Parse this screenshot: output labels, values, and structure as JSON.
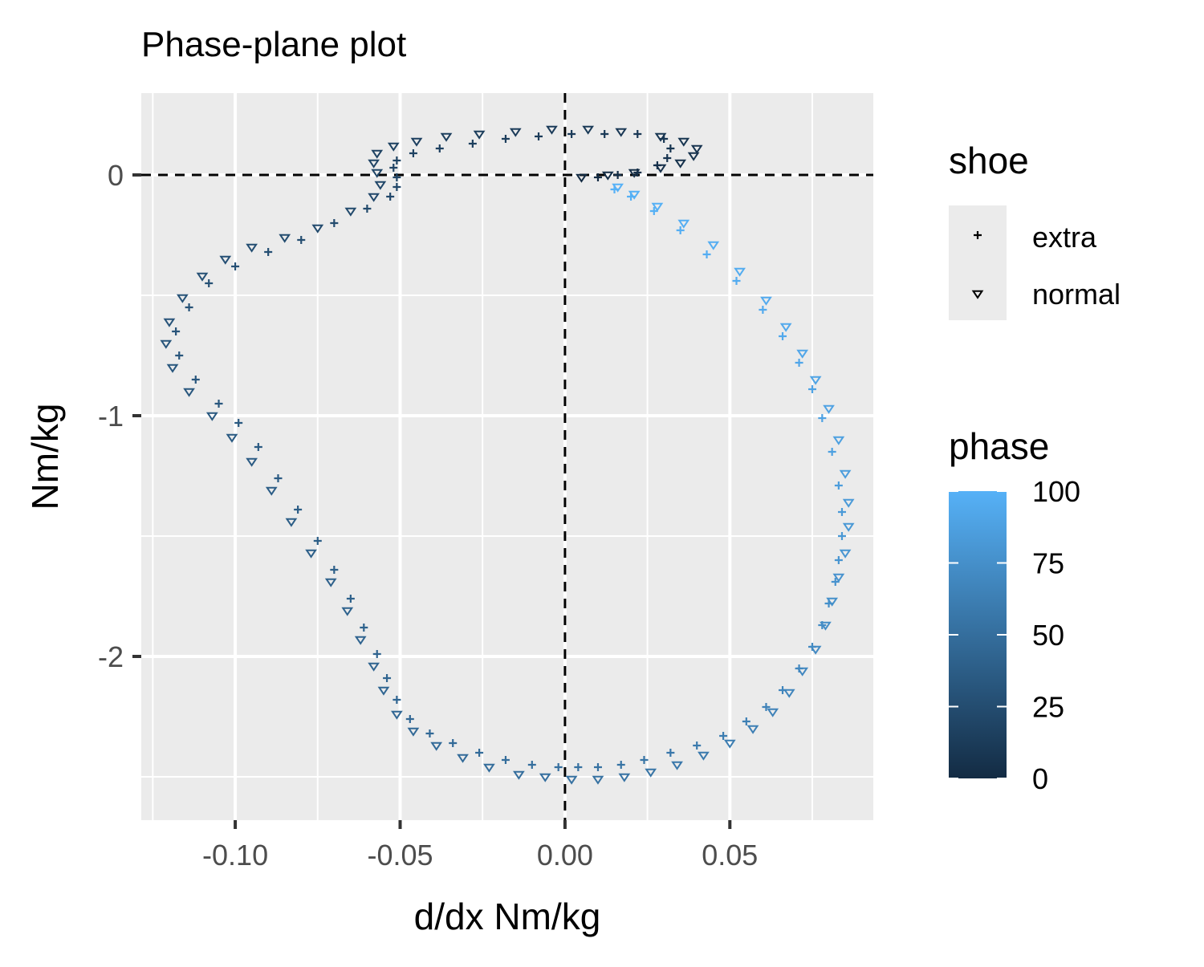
{
  "chart_data": {
    "type": "scatter",
    "title": "Phase-plane plot",
    "xlabel": "d/dx Nm/kg",
    "ylabel": "Nm/kg",
    "xlim": [
      -0.1285,
      0.0935
    ],
    "ylim": [
      -2.68,
      0.34
    ],
    "x_ticks": [
      -0.1,
      -0.05,
      0.0,
      0.05
    ],
    "x_tick_labels": [
      "-0.10",
      "-0.05",
      "0.00",
      "0.05"
    ],
    "y_ticks": [
      0,
      -1,
      -2
    ],
    "y_tick_labels": [
      "0",
      "-1",
      "-2"
    ],
    "grid": true,
    "reference_lines": [
      {
        "orientation": "horizontal",
        "value": 0,
        "style": "dashed"
      },
      {
        "orientation": "vertical",
        "value": 0,
        "style": "dashed"
      }
    ],
    "legend": {
      "placement": "right",
      "shape": {
        "title": "shoe",
        "entries": [
          {
            "label": "extra",
            "shape": "plus"
          },
          {
            "label": "normal",
            "shape": "triangle-down"
          }
        ]
      },
      "color": {
        "title": "phase",
        "ticks": [
          0,
          25,
          50,
          75,
          100
        ],
        "tick_labels": [
          "0",
          "25",
          "50",
          "75",
          "100"
        ],
        "low_color": "#132B43",
        "high_color": "#56B1F7"
      }
    },
    "series": [
      {
        "name": "extra",
        "shape": "plus",
        "points": [
          [
            0.01,
            -0.01,
            0
          ],
          [
            0.016,
            0.0,
            2
          ],
          [
            0.022,
            0.01,
            4
          ],
          [
            0.028,
            0.04,
            6
          ],
          [
            0.031,
            0.07,
            7
          ],
          [
            0.032,
            0.11,
            8
          ],
          [
            0.03,
            0.15,
            9
          ],
          [
            0.022,
            0.17,
            10
          ],
          [
            0.012,
            0.17,
            11
          ],
          [
            0.002,
            0.17,
            12
          ],
          [
            -0.008,
            0.16,
            13
          ],
          [
            -0.018,
            0.15,
            14
          ],
          [
            -0.028,
            0.13,
            15
          ],
          [
            -0.038,
            0.11,
            16
          ],
          [
            -0.046,
            0.09,
            17
          ],
          [
            -0.051,
            0.06,
            18
          ],
          [
            -0.052,
            0.03,
            19
          ],
          [
            -0.051,
            -0.01,
            20
          ],
          [
            -0.051,
            -0.05,
            21
          ],
          [
            -0.053,
            -0.09,
            22
          ],
          [
            -0.06,
            -0.14,
            23
          ],
          [
            -0.07,
            -0.2,
            24
          ],
          [
            -0.08,
            -0.27,
            25
          ],
          [
            -0.09,
            -0.32,
            26
          ],
          [
            -0.1,
            -0.38,
            27
          ],
          [
            -0.108,
            -0.45,
            28
          ],
          [
            -0.114,
            -0.55,
            29
          ],
          [
            -0.118,
            -0.65,
            30
          ],
          [
            -0.117,
            -0.75,
            31
          ],
          [
            -0.112,
            -0.85,
            32
          ],
          [
            -0.105,
            -0.95,
            33
          ],
          [
            -0.099,
            -1.03,
            34
          ],
          [
            -0.093,
            -1.13,
            35
          ],
          [
            -0.087,
            -1.26,
            36
          ],
          [
            -0.081,
            -1.39,
            37
          ],
          [
            -0.075,
            -1.52,
            38
          ],
          [
            -0.07,
            -1.64,
            39
          ],
          [
            -0.065,
            -1.76,
            40
          ],
          [
            -0.061,
            -1.88,
            41
          ],
          [
            -0.057,
            -1.99,
            42
          ],
          [
            -0.054,
            -2.09,
            43
          ],
          [
            -0.051,
            -2.18,
            44
          ],
          [
            -0.047,
            -2.26,
            45
          ],
          [
            -0.041,
            -2.32,
            46
          ],
          [
            -0.034,
            -2.36,
            47
          ],
          [
            -0.026,
            -2.4,
            48
          ],
          [
            -0.018,
            -2.43,
            49
          ],
          [
            -0.01,
            -2.45,
            50
          ],
          [
            -0.002,
            -2.46,
            51
          ],
          [
            0.004,
            -2.46,
            52
          ],
          [
            0.01,
            -2.46,
            53
          ],
          [
            0.017,
            -2.45,
            54
          ],
          [
            0.024,
            -2.43,
            55
          ],
          [
            0.032,
            -2.4,
            57
          ],
          [
            0.04,
            -2.37,
            59
          ],
          [
            0.048,
            -2.33,
            61
          ],
          [
            0.055,
            -2.27,
            63
          ],
          [
            0.061,
            -2.21,
            65
          ],
          [
            0.066,
            -2.14,
            67
          ],
          [
            0.071,
            -2.05,
            69
          ],
          [
            0.075,
            -1.96,
            71
          ],
          [
            0.078,
            -1.87,
            73
          ],
          [
            0.08,
            -1.78,
            75
          ],
          [
            0.082,
            -1.69,
            77
          ],
          [
            0.083,
            -1.6,
            79
          ],
          [
            0.084,
            -1.5,
            81
          ],
          [
            0.084,
            -1.4,
            83
          ],
          [
            0.083,
            -1.29,
            85
          ],
          [
            0.081,
            -1.15,
            87
          ],
          [
            0.078,
            -1.01,
            89
          ],
          [
            0.075,
            -0.89,
            90
          ],
          [
            0.071,
            -0.78,
            92
          ],
          [
            0.066,
            -0.67,
            94
          ],
          [
            0.06,
            -0.56,
            95
          ],
          [
            0.052,
            -0.44,
            96
          ],
          [
            0.043,
            -0.33,
            97
          ],
          [
            0.035,
            -0.23,
            98
          ],
          [
            0.027,
            -0.15,
            99
          ],
          [
            0.02,
            -0.09,
            99
          ],
          [
            0.015,
            -0.06,
            100
          ]
        ]
      },
      {
        "name": "normal",
        "shape": "triangle-down",
        "points": [
          [
            0.005,
            -0.01,
            0
          ],
          [
            0.013,
            0.0,
            2
          ],
          [
            0.021,
            0.01,
            3
          ],
          [
            0.029,
            0.03,
            4
          ],
          [
            0.035,
            0.05,
            5
          ],
          [
            0.039,
            0.08,
            6
          ],
          [
            0.04,
            0.11,
            7
          ],
          [
            0.036,
            0.14,
            8
          ],
          [
            0.029,
            0.16,
            9
          ],
          [
            0.017,
            0.18,
            10
          ],
          [
            0.007,
            0.19,
            11
          ],
          [
            -0.004,
            0.19,
            12
          ],
          [
            -0.015,
            0.18,
            13
          ],
          [
            -0.026,
            0.17,
            14
          ],
          [
            -0.036,
            0.16,
            15
          ],
          [
            -0.045,
            0.14,
            16
          ],
          [
            -0.052,
            0.12,
            17
          ],
          [
            -0.057,
            0.09,
            18
          ],
          [
            -0.058,
            0.05,
            19
          ],
          [
            -0.057,
            0.01,
            20
          ],
          [
            -0.056,
            -0.04,
            21
          ],
          [
            -0.058,
            -0.09,
            22
          ],
          [
            -0.065,
            -0.15,
            23
          ],
          [
            -0.075,
            -0.22,
            24
          ],
          [
            -0.085,
            -0.26,
            25
          ],
          [
            -0.095,
            -0.3,
            26
          ],
          [
            -0.103,
            -0.35,
            27
          ],
          [
            -0.11,
            -0.42,
            28
          ],
          [
            -0.116,
            -0.51,
            29
          ],
          [
            -0.12,
            -0.61,
            30
          ],
          [
            -0.121,
            -0.7,
            31
          ],
          [
            -0.119,
            -0.8,
            32
          ],
          [
            -0.114,
            -0.9,
            33
          ],
          [
            -0.107,
            -1.0,
            34
          ],
          [
            -0.101,
            -1.09,
            35
          ],
          [
            -0.095,
            -1.19,
            36
          ],
          [
            -0.089,
            -1.31,
            37
          ],
          [
            -0.083,
            -1.44,
            38
          ],
          [
            -0.077,
            -1.57,
            39
          ],
          [
            -0.071,
            -1.69,
            40
          ],
          [
            -0.066,
            -1.81,
            41
          ],
          [
            -0.062,
            -1.93,
            42
          ],
          [
            -0.058,
            -2.04,
            43
          ],
          [
            -0.055,
            -2.14,
            44
          ],
          [
            -0.051,
            -2.24,
            45
          ],
          [
            -0.046,
            -2.31,
            46
          ],
          [
            -0.039,
            -2.37,
            47
          ],
          [
            -0.031,
            -2.42,
            48
          ],
          [
            -0.023,
            -2.46,
            49
          ],
          [
            -0.014,
            -2.49,
            50
          ],
          [
            -0.006,
            -2.5,
            51
          ],
          [
            0.002,
            -2.51,
            52
          ],
          [
            0.01,
            -2.51,
            53
          ],
          [
            0.018,
            -2.5,
            54
          ],
          [
            0.026,
            -2.48,
            55
          ],
          [
            0.034,
            -2.45,
            57
          ],
          [
            0.042,
            -2.41,
            59
          ],
          [
            0.05,
            -2.36,
            61
          ],
          [
            0.057,
            -2.3,
            63
          ],
          [
            0.063,
            -2.23,
            65
          ],
          [
            0.068,
            -2.15,
            67
          ],
          [
            0.072,
            -2.06,
            69
          ],
          [
            0.076,
            -1.97,
            71
          ],
          [
            0.079,
            -1.87,
            73
          ],
          [
            0.081,
            -1.77,
            75
          ],
          [
            0.083,
            -1.67,
            77
          ],
          [
            0.085,
            -1.57,
            79
          ],
          [
            0.086,
            -1.46,
            81
          ],
          [
            0.086,
            -1.36,
            83
          ],
          [
            0.085,
            -1.24,
            85
          ],
          [
            0.083,
            -1.1,
            87
          ],
          [
            0.08,
            -0.97,
            89
          ],
          [
            0.076,
            -0.85,
            90
          ],
          [
            0.072,
            -0.74,
            92
          ],
          [
            0.067,
            -0.63,
            94
          ],
          [
            0.061,
            -0.52,
            95
          ],
          [
            0.053,
            -0.4,
            96
          ],
          [
            0.045,
            -0.29,
            97
          ],
          [
            0.036,
            -0.2,
            98
          ],
          [
            0.028,
            -0.13,
            99
          ],
          [
            0.021,
            -0.08,
            99
          ],
          [
            0.016,
            -0.05,
            100
          ]
        ]
      }
    ]
  }
}
